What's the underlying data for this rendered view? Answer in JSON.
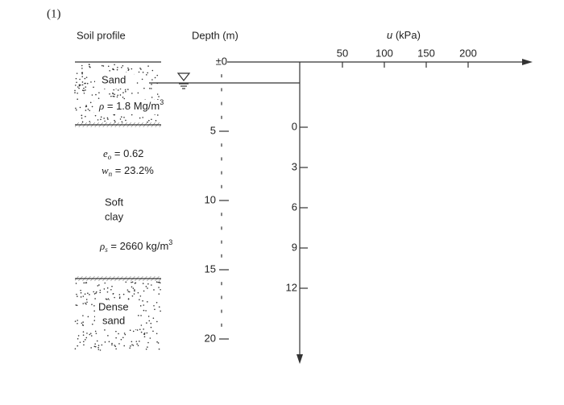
{
  "figure_label": "(1)",
  "headers": {
    "soil_profile": "Soil profile",
    "depth": "Depth (m)",
    "u_symbol": "u",
    "u_unit": " (kPa)"
  },
  "sand": {
    "name": "Sand",
    "density_symbol": "ρ",
    "density_text": " = 1.8 Mg/m",
    "density_sup": "3"
  },
  "clay": {
    "void_symbol": "e",
    "void_sub": "o",
    "void_text": " = 0.62",
    "water_symbol": "w",
    "water_sub": "n",
    "water_text": " = 23.2%",
    "name_line1": "Soft",
    "name_line2": "clay",
    "solid_symbol": "ρ",
    "solid_sub": "s",
    "solid_text": " = 2660 kg/m",
    "solid_sup": "3"
  },
  "dense_sand": {
    "name_line1": "Dense",
    "name_line2": "sand"
  },
  "depth_ticks": [
    "±0",
    "5",
    "10",
    "15",
    "20"
  ],
  "u_ticks": [
    "50",
    "100",
    "150",
    "200"
  ],
  "right_ticks": [
    "0",
    "3",
    "6",
    "9",
    "12"
  ]
}
